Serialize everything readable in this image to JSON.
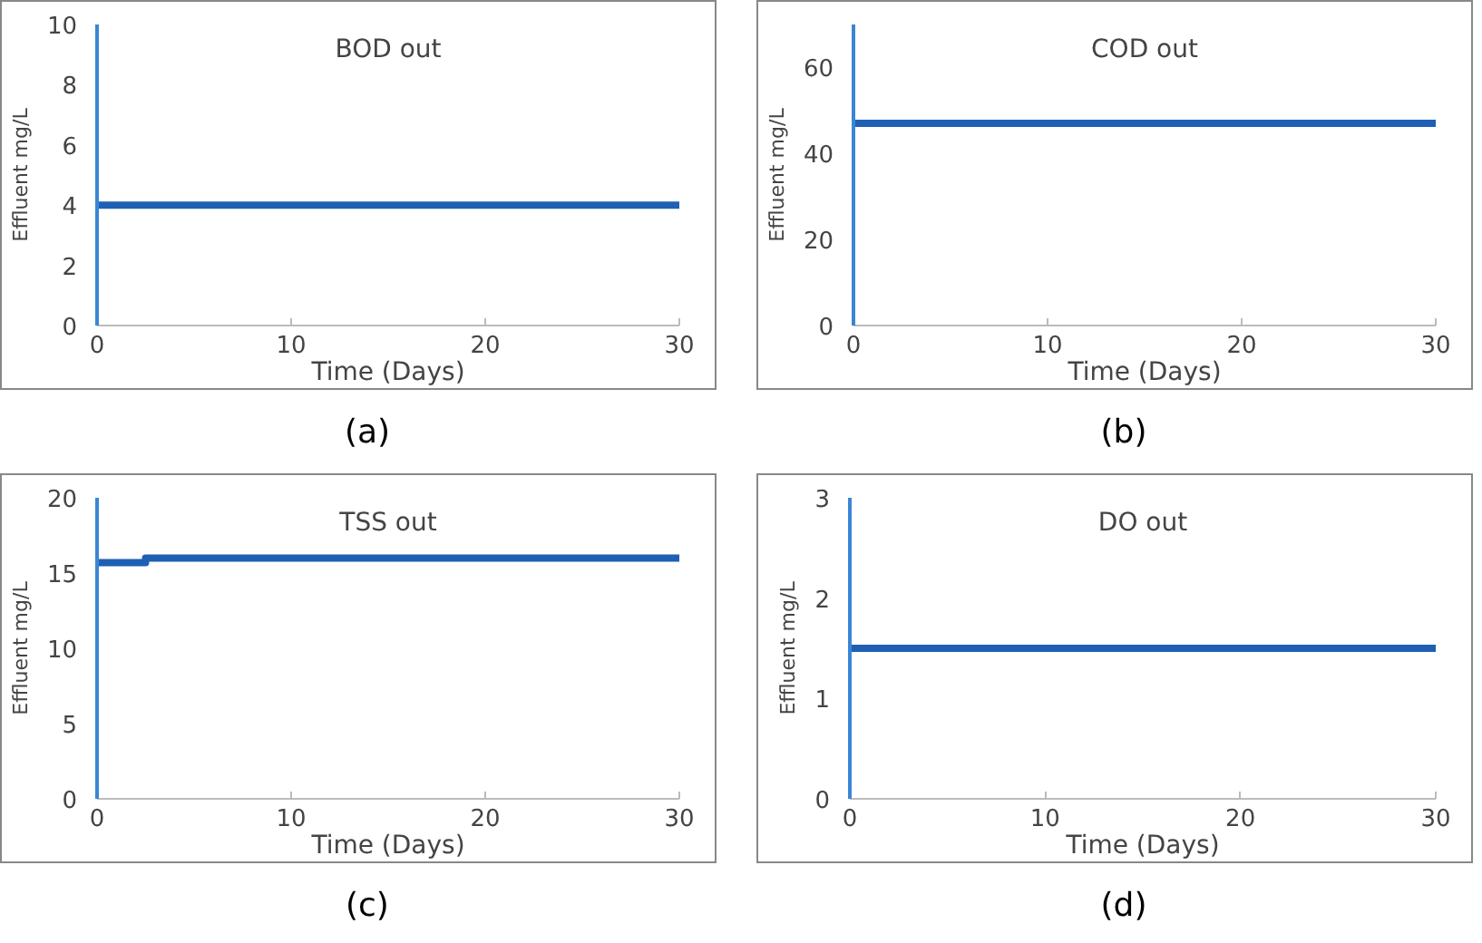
{
  "chart_data": [
    {
      "type": "line",
      "title": "BOD out",
      "xlabel": "Time (Days)",
      "ylabel": "Effluent mg/L",
      "annotations": [
        "(a)"
      ],
      "xlim": [
        0,
        30
      ],
      "ylim": [
        0,
        10
      ],
      "xticks": [
        0,
        10,
        20,
        30
      ],
      "yticks": [
        0,
        2,
        4,
        6,
        8,
        10
      ],
      "grid": false,
      "series": [
        {
          "color": "#1f5fb4",
          "x": [
            0,
            30
          ],
          "values": [
            4,
            4
          ]
        }
      ]
    },
    {
      "type": "line",
      "title": "COD out",
      "xlabel": "Time (Days)",
      "ylabel": "Effluent mg/L",
      "annotations": [
        "(b)"
      ],
      "xlim": [
        0,
        30
      ],
      "ylim": [
        0,
        70
      ],
      "xticks": [
        0,
        10,
        20,
        30
      ],
      "yticks": [
        0,
        20,
        40,
        60
      ],
      "grid": false,
      "series": [
        {
          "color": "#1f5fb4",
          "x": [
            0,
            30
          ],
          "values": [
            47,
            47
          ]
        }
      ]
    },
    {
      "type": "line",
      "title": "TSS out",
      "xlabel": "Time (Days)",
      "ylabel": "Effluent mg/L",
      "annotations": [
        "(c)"
      ],
      "xlim": [
        0,
        30
      ],
      "ylim": [
        0,
        20
      ],
      "xticks": [
        0,
        10,
        20,
        30
      ],
      "yticks": [
        0,
        5,
        10,
        15,
        20
      ],
      "grid": false,
      "series": [
        {
          "color": "#1f5fb4",
          "x": [
            0,
            2.5,
            2.5,
            30
          ],
          "values": [
            15.7,
            15.7,
            16,
            16
          ]
        }
      ]
    },
    {
      "type": "line",
      "title": "DO out",
      "xlabel": "Time (Days)",
      "ylabel": "Effluent mg/L",
      "annotations": [
        "(d)"
      ],
      "xlim": [
        0,
        30
      ],
      "ylim": [
        0,
        3
      ],
      "xticks": [
        0,
        10,
        20,
        30
      ],
      "yticks": [
        0,
        1,
        2,
        3
      ],
      "grid": false,
      "series": [
        {
          "color": "#1f5fb4",
          "x": [
            0,
            30
          ],
          "values": [
            1.5,
            1.5
          ]
        }
      ]
    }
  ]
}
